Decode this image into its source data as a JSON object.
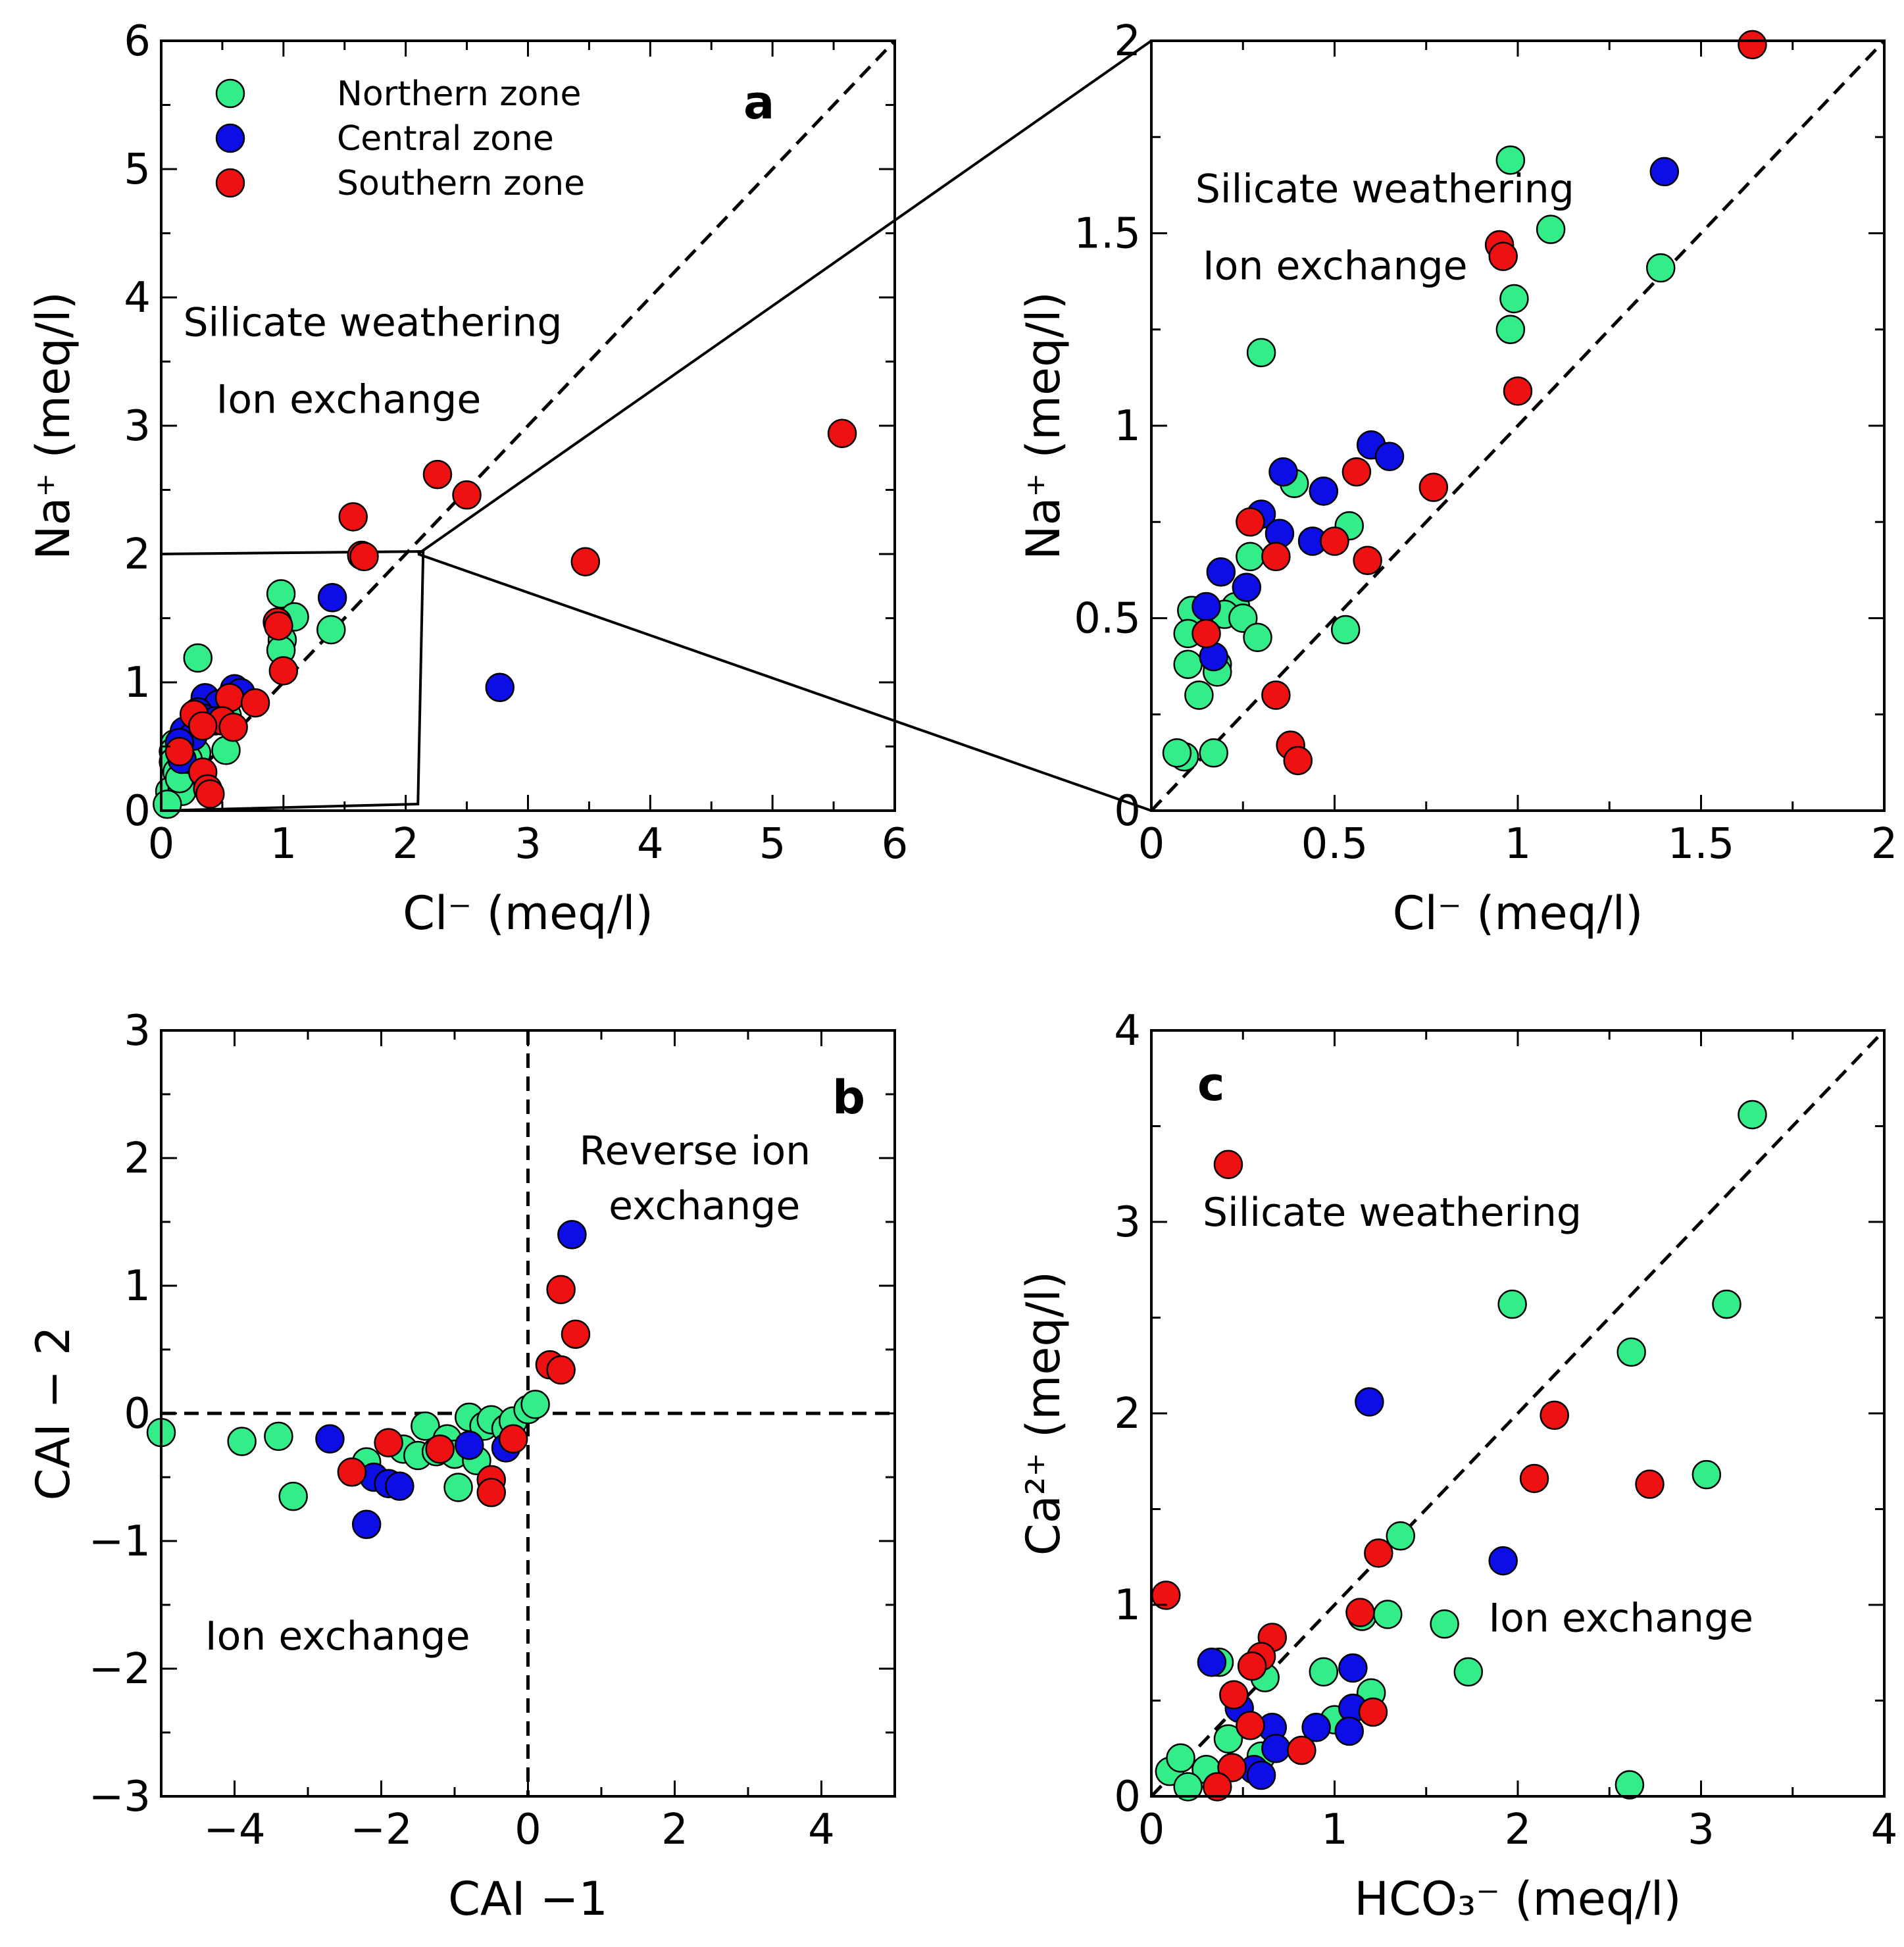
{
  "colors": {
    "Northern zone": "#33ee88",
    "Central zone": "#0d0de6",
    "Southern zone": "#ee1111"
  },
  "chart_data": [
    {
      "id": "a",
      "type": "scatter",
      "panel_label": "a",
      "xlabel": "Cl⁻ (meq/l)",
      "ylabel": "Na⁺ (meq/l)",
      "xlim": [
        0,
        6
      ],
      "ylim": [
        0,
        6
      ],
      "xticks": [
        0,
        1,
        2,
        3,
        4,
        5,
        6
      ],
      "yticks": [
        0,
        1,
        2,
        3,
        4,
        5,
        6
      ],
      "xtick_labels": [
        "0",
        "1",
        "2",
        "3",
        "4",
        "5",
        "6"
      ],
      "ytick_labels": [
        "0",
        "1",
        "2",
        "3",
        "4",
        "5",
        "6"
      ],
      "reference_line": {
        "type": "1:1",
        "from": [
          0,
          0
        ],
        "to": [
          6,
          6
        ]
      },
      "zoom_box": {
        "from": [
          0,
          0
        ],
        "to": [
          2.1,
          2.0
        ]
      },
      "annotations": [
        {
          "text": "Silicate weathering",
          "x": 0.18,
          "y": 3.7
        },
        {
          "text": "Ion exchange",
          "x": 0.45,
          "y": 3.1
        }
      ],
      "legend": {
        "position": "top-left",
        "entries": [
          "Northern zone",
          "Central zone",
          "Southern zone"
        ]
      },
      "series": [
        {
          "name": "Northern zone",
          "points": [
            [
              0.98,
              1.69
            ],
            [
              1.09,
              1.51
            ],
            [
              1.39,
              1.41
            ],
            [
              0.99,
              1.33
            ],
            [
              0.98,
              1.25
            ],
            [
              0.3,
              1.19
            ],
            [
              0.39,
              0.85
            ],
            [
              0.54,
              0.74
            ],
            [
              0.27,
              0.66
            ],
            [
              0.23,
              0.53
            ],
            [
              0.11,
              0.52
            ],
            [
              0.2,
              0.51
            ],
            [
              0.25,
              0.5
            ],
            [
              0.29,
              0.45
            ],
            [
              0.53,
              0.47
            ],
            [
              0.1,
              0.46
            ],
            [
              0.18,
              0.38
            ],
            [
              0.18,
              0.36
            ],
            [
              0.1,
              0.38
            ],
            [
              0.13,
              0.3
            ],
            [
              0.09,
              0.14
            ],
            [
              0.07,
              0.15
            ],
            [
              0.17,
              0.15
            ],
            [
              0.05,
              0.05
            ],
            [
              0.15,
              0.25
            ],
            [
              0.22,
              0.4
            ]
          ]
        },
        {
          "name": "Central zone",
          "points": [
            [
              1.4,
              1.66
            ],
            [
              0.6,
              0.95
            ],
            [
              0.65,
              0.92
            ],
            [
              0.36,
              0.88
            ],
            [
              0.47,
              0.83
            ],
            [
              0.3,
              0.77
            ],
            [
              0.35,
              0.72
            ],
            [
              0.44,
              0.7
            ],
            [
              0.19,
              0.62
            ],
            [
              0.26,
              0.58
            ],
            [
              0.15,
              0.53
            ],
            [
              0.17,
              0.4
            ],
            [
              2.77,
              0.96
            ]
          ]
        },
        {
          "name": "Southern zone",
          "points": [
            [
              1.64,
              1.99
            ],
            [
              0.95,
              1.47
            ],
            [
              0.96,
              1.44
            ],
            [
              1.0,
              1.09
            ],
            [
              0.56,
              0.88
            ],
            [
              0.77,
              0.84
            ],
            [
              0.27,
              0.75
            ],
            [
              0.5,
              0.7
            ],
            [
              0.34,
              0.66
            ],
            [
              0.59,
              0.65
            ],
            [
              0.15,
              0.46
            ],
            [
              0.34,
              0.3
            ],
            [
              0.38,
              0.17
            ],
            [
              0.4,
              0.13
            ],
            [
              2.26,
              2.62
            ],
            [
              2.5,
              2.46
            ],
            [
              1.57,
              2.29
            ],
            [
              1.66,
              1.98
            ],
            [
              3.47,
              1.94
            ],
            [
              5.57,
              2.94
            ]
          ]
        }
      ]
    },
    {
      "id": "a-zoom",
      "type": "scatter",
      "xlabel": "Cl⁻ (meq/l)",
      "ylabel": "Na⁺ (meq/l)",
      "xlim": [
        0,
        2
      ],
      "ylim": [
        0,
        2
      ],
      "xticks": [
        0,
        0.5,
        1,
        1.5,
        2
      ],
      "yticks": [
        0,
        0.5,
        1,
        1.5,
        2
      ],
      "xtick_labels": [
        "0",
        "0.5",
        "1",
        "1.5",
        "2"
      ],
      "ytick_labels": [
        "0",
        "0.5",
        "1",
        "1.5",
        "2"
      ],
      "reference_line": {
        "type": "1:1",
        "from": [
          0,
          0
        ],
        "to": [
          2,
          2
        ]
      },
      "annotations": [
        {
          "text": "Silicate weathering",
          "x": 0.12,
          "y": 1.58
        },
        {
          "text": "Ion exchange",
          "x": 0.14,
          "y": 1.38
        }
      ],
      "series": [
        {
          "name": "Northern zone",
          "points": [
            [
              0.98,
              1.69
            ],
            [
              1.09,
              1.51
            ],
            [
              1.39,
              1.41
            ],
            [
              0.99,
              1.33
            ],
            [
              0.98,
              1.25
            ],
            [
              0.3,
              1.19
            ],
            [
              0.39,
              0.85
            ],
            [
              0.54,
              0.74
            ],
            [
              0.27,
              0.66
            ],
            [
              0.23,
              0.53
            ],
            [
              0.11,
              0.52
            ],
            [
              0.2,
              0.51
            ],
            [
              0.25,
              0.5
            ],
            [
              0.29,
              0.45
            ],
            [
              0.53,
              0.47
            ],
            [
              0.1,
              0.46
            ],
            [
              0.18,
              0.38
            ],
            [
              0.18,
              0.36
            ],
            [
              0.1,
              0.38
            ],
            [
              0.13,
              0.3
            ],
            [
              0.09,
              0.14
            ],
            [
              0.07,
              0.15
            ],
            [
              0.17,
              0.15
            ]
          ]
        },
        {
          "name": "Central zone",
          "points": [
            [
              1.4,
              1.66
            ],
            [
              0.6,
              0.95
            ],
            [
              0.65,
              0.92
            ],
            [
              0.36,
              0.88
            ],
            [
              0.47,
              0.83
            ],
            [
              0.3,
              0.77
            ],
            [
              0.35,
              0.72
            ],
            [
              0.44,
              0.7
            ],
            [
              0.19,
              0.62
            ],
            [
              0.26,
              0.58
            ],
            [
              0.15,
              0.53
            ],
            [
              0.17,
              0.4
            ]
          ]
        },
        {
          "name": "Southern zone",
          "points": [
            [
              1.64,
              1.99
            ],
            [
              0.95,
              1.47
            ],
            [
              0.96,
              1.44
            ],
            [
              1.0,
              1.09
            ],
            [
              0.56,
              0.88
            ],
            [
              0.77,
              0.84
            ],
            [
              0.27,
              0.75
            ],
            [
              0.5,
              0.7
            ],
            [
              0.34,
              0.66
            ],
            [
              0.59,
              0.65
            ],
            [
              0.15,
              0.46
            ],
            [
              0.34,
              0.3
            ],
            [
              0.38,
              0.17
            ],
            [
              0.4,
              0.13
            ]
          ]
        }
      ]
    },
    {
      "id": "b",
      "type": "scatter",
      "panel_label": "b",
      "xlabel": "CAI −1",
      "ylabel": "CAI − 2",
      "xlim": [
        -5,
        5
      ],
      "ylim": [
        -3,
        3
      ],
      "xticks": [
        -4,
        -2,
        0,
        2,
        4
      ],
      "yticks": [
        -3,
        -2,
        -1,
        0,
        1,
        2,
        3
      ],
      "xtick_labels": [
        "−4",
        "−2",
        "0",
        "2",
        "4"
      ],
      "ytick_labels": [
        "−3",
        "−2",
        "−1",
        "0",
        "1",
        "2",
        "3"
      ],
      "reference_lines": [
        {
          "type": "horizontal",
          "y": 0
        },
        {
          "type": "vertical",
          "x": 0
        }
      ],
      "annotations": [
        {
          "text": "Reverse ion",
          "x": 0.7,
          "y": 1.95
        },
        {
          "text": "exchange",
          "x": 1.1,
          "y": 1.52
        },
        {
          "text": "Ion exchange",
          "x": -4.4,
          "y": -1.85
        }
      ],
      "series": [
        {
          "name": "Northern zone",
          "points": [
            [
              -5.0,
              -0.15
            ],
            [
              -3.9,
              -0.22
            ],
            [
              -3.4,
              -0.18
            ],
            [
              -3.2,
              -0.65
            ],
            [
              -2.2,
              -0.38
            ],
            [
              -1.7,
              -0.28
            ],
            [
              -1.5,
              -0.33
            ],
            [
              -1.4,
              -0.1
            ],
            [
              -1.25,
              -0.3
            ],
            [
              -1.1,
              -0.2
            ],
            [
              -1.0,
              -0.32
            ],
            [
              -0.95,
              -0.58
            ],
            [
              -0.8,
              -0.03
            ],
            [
              -0.7,
              -0.37
            ],
            [
              -0.6,
              -0.1
            ],
            [
              -0.5,
              -0.05
            ],
            [
              -0.3,
              -0.12
            ],
            [
              -0.2,
              -0.06
            ],
            [
              0.0,
              0.03
            ],
            [
              0.1,
              0.07
            ]
          ]
        },
        {
          "name": "Central zone",
          "points": [
            [
              0.6,
              1.4
            ],
            [
              -2.7,
              -0.2
            ],
            [
              -2.2,
              -0.87
            ],
            [
              -2.1,
              -0.5
            ],
            [
              -1.9,
              -0.55
            ],
            [
              -1.75,
              -0.57
            ],
            [
              -0.8,
              -0.25
            ],
            [
              -0.3,
              -0.27
            ]
          ]
        },
        {
          "name": "Southern zone",
          "points": [
            [
              0.45,
              0.97
            ],
            [
              0.65,
              0.62
            ],
            [
              0.3,
              0.38
            ],
            [
              0.45,
              0.34
            ],
            [
              -2.4,
              -0.46
            ],
            [
              -1.9,
              -0.23
            ],
            [
              -1.2,
              -0.28
            ],
            [
              -0.5,
              -0.52
            ],
            [
              -0.5,
              -0.62
            ],
            [
              -0.2,
              -0.2
            ]
          ]
        }
      ]
    },
    {
      "id": "c",
      "type": "scatter",
      "panel_label": "c",
      "xlabel": "HCO₃⁻ (meq/l)",
      "ylabel": "Ca²⁺ (meq/l)",
      "xlim": [
        0,
        4
      ],
      "ylim": [
        0,
        4
      ],
      "xticks": [
        0,
        1,
        2,
        3,
        4
      ],
      "yticks": [
        0,
        1,
        2,
        3,
        4
      ],
      "xtick_labels": [
        "0",
        "1",
        "2",
        "3",
        "4"
      ],
      "ytick_labels": [
        "0",
        "1",
        "2",
        "3",
        "4"
      ],
      "reference_line": {
        "type": "1:1",
        "from": [
          0,
          0
        ],
        "to": [
          4,
          4
        ]
      },
      "annotations": [
        {
          "text": "Silicate weathering",
          "x": 0.28,
          "y": 2.98
        },
        {
          "text": "Ion exchange",
          "x": 1.84,
          "y": 0.86
        }
      ],
      "series": [
        {
          "name": "Northern zone",
          "points": [
            [
              3.28,
              3.56
            ],
            [
              1.97,
              2.57
            ],
            [
              3.14,
              2.57
            ],
            [
              2.62,
              2.32
            ],
            [
              3.03,
              1.68
            ],
            [
              1.36,
              1.36
            ],
            [
              1.15,
              0.94
            ],
            [
              1.29,
              0.95
            ],
            [
              1.6,
              0.9
            ],
            [
              1.73,
              0.65
            ],
            [
              0.37,
              0.7
            ],
            [
              0.62,
              0.62
            ],
            [
              0.94,
              0.65
            ],
            [
              1.2,
              0.54
            ],
            [
              1.0,
              0.4
            ],
            [
              0.42,
              0.3
            ],
            [
              0.6,
              0.21
            ],
            [
              0.3,
              0.14
            ],
            [
              0.1,
              0.13
            ],
            [
              0.16,
              0.2
            ],
            [
              0.2,
              0.05
            ],
            [
              2.61,
              0.06
            ]
          ]
        },
        {
          "name": "Central zone",
          "points": [
            [
              1.19,
              2.06
            ],
            [
              1.92,
              1.23
            ],
            [
              0.33,
              0.7
            ],
            [
              1.1,
              0.67
            ],
            [
              0.48,
              0.46
            ],
            [
              1.1,
              0.46
            ],
            [
              0.66,
              0.36
            ],
            [
              0.9,
              0.36
            ],
            [
              1.08,
              0.34
            ],
            [
              0.68,
              0.25
            ],
            [
              0.56,
              0.14
            ],
            [
              0.6,
              0.11
            ]
          ]
        },
        {
          "name": "Southern zone",
          "points": [
            [
              0.42,
              3.3
            ],
            [
              2.2,
              1.99
            ],
            [
              2.09,
              1.66
            ],
            [
              2.72,
              1.63
            ],
            [
              1.24,
              1.27
            ],
            [
              0.08,
              1.05
            ],
            [
              1.14,
              0.96
            ],
            [
              0.66,
              0.83
            ],
            [
              0.6,
              0.73
            ],
            [
              0.55,
              0.68
            ],
            [
              0.45,
              0.53
            ],
            [
              1.21,
              0.44
            ],
            [
              0.54,
              0.37
            ],
            [
              0.82,
              0.24
            ],
            [
              0.44,
              0.15
            ],
            [
              0.36,
              0.05
            ]
          ]
        }
      ]
    }
  ]
}
